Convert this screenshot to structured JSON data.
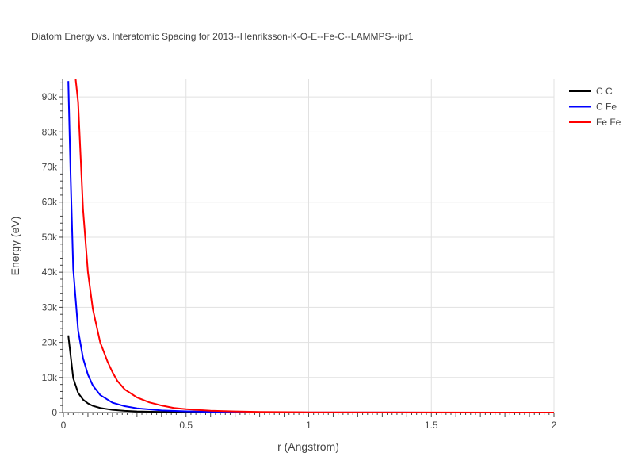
{
  "chart_data": {
    "type": "line",
    "title": "Diatom Energy vs. Interatomic Spacing for 2013--Henriksson-K-O-E--Fe-C--LAMMPS--ipr1",
    "xlabel": "r (Angstrom)",
    "ylabel": "Energy (eV)",
    "xlim": [
      0,
      2
    ],
    "ylim": [
      0,
      95000
    ],
    "x_ticks": [
      0,
      0.5,
      1,
      1.5,
      2
    ],
    "x_tick_labels": [
      "0",
      "0.5",
      "1",
      "1.5",
      "2"
    ],
    "y_ticks": [
      0,
      10000,
      20000,
      30000,
      40000,
      50000,
      60000,
      70000,
      80000,
      90000
    ],
    "y_tick_labels": [
      "0",
      "10k",
      "20k",
      "30k",
      "40k",
      "50k",
      "60k",
      "70k",
      "80k",
      "90k"
    ],
    "grid": true,
    "legend_position": "top-right",
    "series": [
      {
        "name": "C C",
        "color": "#000000",
        "points": [
          [
            0.02,
            22000
          ],
          [
            0.04,
            9800
          ],
          [
            0.06,
            5600
          ],
          [
            0.08,
            3700
          ],
          [
            0.1,
            2600
          ],
          [
            0.12,
            1900
          ],
          [
            0.15,
            1300
          ],
          [
            0.2,
            750
          ],
          [
            0.25,
            480
          ],
          [
            0.3,
            320
          ],
          [
            0.4,
            160
          ],
          [
            0.5,
            90
          ],
          [
            0.6,
            55
          ],
          [
            0.8,
            25
          ],
          [
            1.0,
            12
          ],
          [
            1.5,
            3
          ],
          [
            2.0,
            0
          ]
        ]
      },
      {
        "name": "C Fe",
        "color": "#0000ff",
        "points": [
          [
            0.02,
            94500
          ],
          [
            0.03,
            66000
          ],
          [
            0.04,
            41000
          ],
          [
            0.06,
            23500
          ],
          [
            0.08,
            15500
          ],
          [
            0.1,
            10800
          ],
          [
            0.12,
            7700
          ],
          [
            0.15,
            5000
          ],
          [
            0.2,
            2800
          ],
          [
            0.25,
            1800
          ],
          [
            0.3,
            1200
          ],
          [
            0.4,
            600
          ],
          [
            0.5,
            330
          ],
          [
            0.6,
            200
          ],
          [
            0.8,
            80
          ],
          [
            1.0,
            35
          ],
          [
            1.5,
            8
          ],
          [
            2.0,
            0
          ]
        ]
      },
      {
        "name": "Fe Fe",
        "color": "#ff0000",
        "points": [
          [
            0.05,
            95000
          ],
          [
            0.06,
            88500
          ],
          [
            0.08,
            58000
          ],
          [
            0.1,
            40000
          ],
          [
            0.12,
            29500
          ],
          [
            0.15,
            20000
          ],
          [
            0.18,
            14500
          ],
          [
            0.2,
            11500
          ],
          [
            0.22,
            9000
          ],
          [
            0.25,
            6600
          ],
          [
            0.3,
            4300
          ],
          [
            0.35,
            2900
          ],
          [
            0.4,
            2000
          ],
          [
            0.45,
            1300
          ],
          [
            0.5,
            950
          ],
          [
            0.6,
            500
          ],
          [
            0.7,
            300
          ],
          [
            0.8,
            180
          ],
          [
            1.0,
            70
          ],
          [
            1.5,
            15
          ],
          [
            2.0,
            0
          ]
        ]
      }
    ]
  }
}
